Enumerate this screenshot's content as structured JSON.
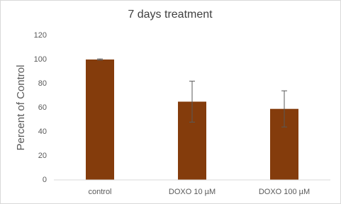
{
  "chart_data": {
    "type": "bar",
    "title": "7 days treatment",
    "ylabel": "Percent of Control",
    "categories": [
      "control",
      "DOXO 10 µM",
      "DOXO 100 µM"
    ],
    "values": [
      100,
      65,
      59
    ],
    "errors": [
      0.5,
      17,
      15
    ],
    "color": "#843c0c",
    "ylim": [
      0,
      120
    ],
    "yticks": [
      0,
      20,
      40,
      60,
      80,
      100,
      120
    ],
    "grid": false
  }
}
